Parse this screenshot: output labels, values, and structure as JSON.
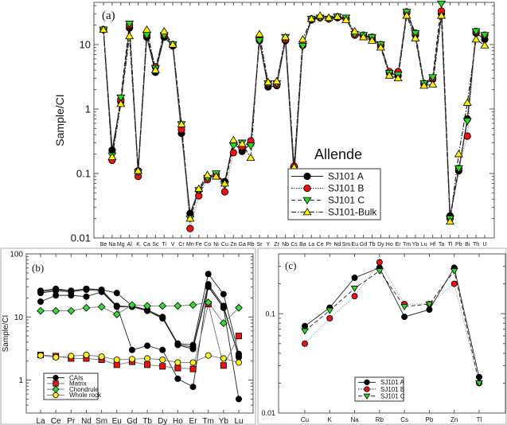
{
  "chart_data": [
    {
      "type": "line",
      "panel_label": "(a)",
      "title": "Allende",
      "ylabel": "Sample/CI",
      "xlabel": "",
      "yscale": "log",
      "ylim": [
        0.01,
        45
      ],
      "yticks": [
        "0.01",
        "0.1",
        "1",
        "10"
      ],
      "legend_position": "bottom-right",
      "categories": [
        "Be",
        "Na",
        "Mg",
        "Al",
        "K",
        "Ca",
        "Sc",
        "Ti",
        "V",
        "Cr",
        "Mn",
        "Fe",
        "Co",
        "Ni",
        "Cu",
        "Zn",
        "Ga",
        "Rb",
        "Sr",
        "Y",
        "Zr",
        "Nb",
        "Cs",
        "Ba",
        "La",
        "Ce",
        "Pr",
        "Nd",
        "Sm",
        "Eu",
        "Gd",
        "Tb",
        "Dy",
        "Ho",
        "Er",
        "Tm",
        "Yb",
        "Lu",
        "Hf",
        "Ta",
        "Tl",
        "Pb",
        "Bi",
        "Th",
        "U"
      ],
      "series": [
        {
          "name": "SJ101 A",
          "marker": "circle",
          "color": "#000000",
          "dash": "solid",
          "values": [
            17,
            0.23,
            1.3,
            18,
            0.11,
            13,
            3.7,
            13,
            9.5,
            0.42,
            0.024,
            0.055,
            0.085,
            0.095,
            0.075,
            0.3,
            0.22,
            0.29,
            11.5,
            2.2,
            2.3,
            11.5,
            0.093,
            9.7,
            24,
            26,
            25,
            26,
            25,
            14,
            13.5,
            12.5,
            9.5,
            3.6,
            3.3,
            31,
            14,
            2.4,
            2.9,
            30,
            0.022,
            0.11,
            0.7,
            15,
            12
          ]
        },
        {
          "name": "SJ101 B",
          "marker": "circle",
          "color": "#ee1111",
          "dash": "dotted",
          "values": [
            17,
            0.16,
            1.4,
            20,
            0.09,
            14,
            4.5,
            14,
            10,
            0.48,
            0.014,
            0.045,
            0.08,
            0.095,
            0.052,
            0.21,
            0.26,
            0.32,
            12,
            2.5,
            2.4,
            12,
            0.13,
            10,
            25,
            26,
            25,
            27,
            25,
            14,
            14,
            13,
            10,
            3.8,
            3.8,
            32,
            15,
            2.5,
            3.0,
            33,
            0.02,
            0.12,
            0.38,
            16,
            14
          ]
        },
        {
          "name": "SJ101 C",
          "marker": "triangle-down",
          "color": "#22dd22",
          "dash": "dashed",
          "values": [
            17,
            0.19,
            1.5,
            21,
            0.105,
            14,
            4.3,
            14,
            10,
            0.58,
            0.02,
            0.055,
            0.085,
            0.1,
            0.067,
            0.27,
            0.3,
            0.27,
            11.5,
            2.5,
            2.5,
            13,
            0.115,
            9.5,
            25,
            26,
            25,
            27,
            26,
            14.5,
            14,
            13,
            10,
            3.6,
            3.4,
            32,
            15,
            2.5,
            3.1,
            43,
            0.02,
            0.12,
            0.65,
            16,
            14
          ]
        },
        {
          "name": "SJ101-Bulk",
          "marker": "triangle-up",
          "color": "#ffee00",
          "dash": "dashdot",
          "values": [
            17,
            0.18,
            1.2,
            13.5,
            0.11,
            17,
            4.0,
            16,
            10,
            0.58,
            0.02,
            0.058,
            0.095,
            0.09,
            0.07,
            0.33,
            0.29,
            0.175,
            14.5,
            2.6,
            2.7,
            13,
            0.125,
            12,
            25,
            28,
            26,
            27,
            24,
            16,
            13,
            11.5,
            9,
            3.3,
            3.0,
            28,
            12.5,
            2.3,
            2.4,
            28,
            0.018,
            0.2,
            1.25,
            12,
            9.7
          ]
        }
      ]
    },
    {
      "type": "line",
      "panel_label": "(b)",
      "ylabel": "Sample/CI",
      "yscale": "log",
      "ylim": [
        0.3,
        100
      ],
      "yticks": [
        "1",
        "10",
        "100"
      ],
      "legend_position": "bottom-left",
      "categories": [
        "La",
        "Ce",
        "Pr",
        "Nd",
        "Sm",
        "Eu",
        "Gd",
        "Tb",
        "Dy",
        "Ho",
        "Er",
        "Tm",
        "Yb",
        "Lu"
      ],
      "series": [
        {
          "name": "CAIs",
          "marker": "circle",
          "color": "#000000",
          "values": [
            26,
            28,
            26,
            28,
            27,
            24,
            15,
            13,
            10,
            3.8,
            3.6,
            48,
            23,
            2.6
          ]
        },
        {
          "name": "",
          "group": "CAIs",
          "marker": "circle",
          "color": "#000000",
          "values": [
            24,
            26,
            25,
            27,
            26,
            15,
            14.5,
            12.5,
            9.5,
            3.7,
            3.3,
            33,
            15,
            2.3
          ]
        },
        {
          "name": "",
          "group": "CAIs",
          "marker": "circle",
          "color": "#000000",
          "values": [
            17.5,
            22,
            22,
            21,
            25,
            14.5,
            14.5,
            13,
            9.7,
            3.6,
            3.1,
            30,
            14,
            2.4
          ]
        },
        {
          "name": "",
          "group": "CAIs",
          "marker": "circle",
          "color": "#000000",
          "values": [
            25,
            27,
            26,
            28,
            27,
            15,
            3.0,
            3.5,
            3.0,
            1.05,
            0.78,
            31,
            14,
            0.5
          ]
        },
        {
          "name": "Matrix",
          "marker": "square",
          "color": "#ee1111",
          "values": [
            2.5,
            2.4,
            2.2,
            2.2,
            2.1,
            1.75,
            1.95,
            1.75,
            1.65,
            1.55,
            1.5,
            16,
            1.7,
            5.0
          ]
        },
        {
          "name": "Chondrule",
          "marker": "diamond",
          "color": "#33dd33",
          "values": [
            12.5,
            12.5,
            12.5,
            14,
            14.5,
            11,
            15.5,
            15,
            15,
            15,
            15.5,
            17,
            8,
            14
          ]
        },
        {
          "name": "Whole rock",
          "marker": "circle",
          "color": "#ffee22",
          "values": [
            2.45,
            2.3,
            2.4,
            2.5,
            2.35,
            2.1,
            2.15,
            2.2,
            2.1,
            1.9,
            1.9,
            2.45,
            2.2,
            1.9
          ]
        }
      ]
    },
    {
      "type": "line",
      "panel_label": "(c)",
      "ylabel": "",
      "yscale": "log",
      "ylim": [
        0.01,
        0.4
      ],
      "yticks": [
        "0.01",
        "0.1"
      ],
      "legend_position": "bottom-center",
      "categories": [
        "Cu",
        "K",
        "Na",
        "Rb",
        "Cs",
        "Pb",
        "Zn",
        "Tl"
      ],
      "series": [
        {
          "name": "SJ101 A",
          "marker": "circle",
          "color": "#000000",
          "dash": "solid",
          "values": [
            0.075,
            0.115,
            0.23,
            0.29,
            0.093,
            0.11,
            0.29,
            0.023
          ]
        },
        {
          "name": "SJ101 B",
          "marker": "circle",
          "color": "#ee1111",
          "dash": "dotted",
          "values": [
            0.05,
            0.09,
            0.15,
            0.33,
            0.125,
            0.125,
            0.2,
            0.02
          ]
        },
        {
          "name": "SJ101 C",
          "marker": "triangle-down",
          "color": "#22dd22",
          "dash": "dashed",
          "values": [
            0.067,
            0.108,
            0.18,
            0.27,
            0.118,
            0.125,
            0.27,
            0.02
          ]
        }
      ]
    }
  ]
}
